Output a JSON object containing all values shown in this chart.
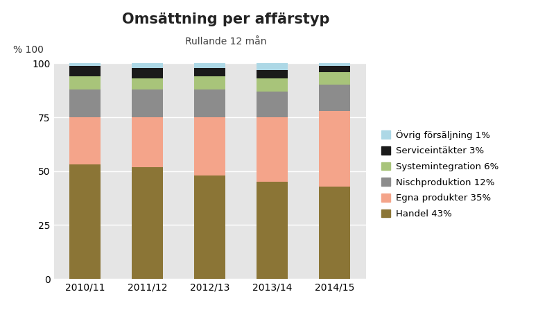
{
  "title": "Omsättning per affärstyp",
  "subtitle": "Rullande 12 mån",
  "categories": [
    "2010/11",
    "2011/12",
    "2012/13",
    "2013/14",
    "2014/15"
  ],
  "series": [
    {
      "label": "Handel 43%",
      "color": "#8B7536",
      "values": [
        53,
        52,
        48,
        45,
        43
      ]
    },
    {
      "label": "Egna produkter 35%",
      "color": "#F4A48A",
      "values": [
        22,
        23,
        27,
        30,
        35
      ]
    },
    {
      "label": "Nischproduktion 12%",
      "color": "#8C8C8C",
      "values": [
        13,
        13,
        13,
        12,
        12
      ]
    },
    {
      "label": "Systemintegration 6%",
      "color": "#A8C47A",
      "values": [
        6,
        5,
        6,
        6,
        6
      ]
    },
    {
      "label": "Serviceintäkter 3%",
      "color": "#1A1A1A",
      "values": [
        5,
        5,
        4,
        4,
        3
      ]
    },
    {
      "label": "Övrig försäljning 1%",
      "color": "#ADD8E6",
      "values": [
        1,
        2,
        2,
        3,
        1
      ]
    }
  ],
  "legend_order": [
    5,
    4,
    3,
    2,
    1,
    0
  ],
  "ylim": [
    0,
    100
  ],
  "yticks": [
    0,
    25,
    50,
    75,
    100
  ],
  "background_color": "#E5E5E5",
  "bar_width": 0.5,
  "title_fontsize": 15,
  "subtitle_fontsize": 10,
  "legend_fontsize": 9.5,
  "tick_fontsize": 10
}
